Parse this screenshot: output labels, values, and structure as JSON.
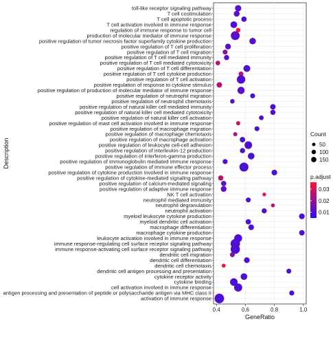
{
  "chart_data": {
    "type": "scatter",
    "xlabel": "GeneRatio",
    "ylabel": "Description",
    "xlim": [
      0.38,
      1.02
    ],
    "xticks": [
      0.4,
      0.6,
      0.8,
      1.0
    ],
    "xtick_labels": [
      "0.4",
      "0.6",
      "0.8",
      "1.0"
    ],
    "grid": true,
    "legend_position": "right",
    "size_legend": {
      "title": "Count",
      "values": [
        50,
        100,
        150
      ],
      "labels": [
        "50",
        "100",
        "150"
      ]
    },
    "color_legend": {
      "title": "p.adjust",
      "ticks": [
        0.01,
        0.02,
        0.03
      ],
      "labels": [
        "0.01",
        "0.02",
        "0.03"
      ],
      "low_color": "#2a0ff5",
      "high_color": "#ff1430"
    },
    "points": [
      {
        "term": "toll-like receptor signaling pathway",
        "x": 0.55,
        "count": 52,
        "p": 0.012
      },
      {
        "term": "T cell costimulation",
        "x": 0.54,
        "count": 42,
        "p": 0.012
      },
      {
        "term": "T cell apoptotic process",
        "x": 0.59,
        "count": 32,
        "p": 0.01
      },
      {
        "term": "T cell activation involved in immune response",
        "x": 0.52,
        "count": 62,
        "p": 0.01
      },
      {
        "term": "regulation of immune response to tumor cell",
        "x": 0.55,
        "count": 20,
        "p": 0.034
      },
      {
        "term": "production of molecular mediator of immune response",
        "x": 0.53,
        "count": 125,
        "p": 0.012
      },
      {
        "term": "positive regulation of tumor necrosis factor superfamily cytokine production",
        "x": 0.65,
        "count": 58,
        "p": 0.012
      },
      {
        "term": "positive regulation of T cell proliferation",
        "x": 0.48,
        "count": 40,
        "p": 0.012
      },
      {
        "term": "positive regulation of T cell migration",
        "x": 0.46,
        "count": 25,
        "p": 0.018
      },
      {
        "term": "positive regulation of T cell mediated immunity",
        "x": 0.47,
        "count": 30,
        "p": 0.012
      },
      {
        "term": "positive regulation of T cell mediated cytotoxicity",
        "x": 0.41,
        "count": 20,
        "p": 0.024
      },
      {
        "term": "positive regulation of T cell differentiation",
        "x": 0.61,
        "count": 65,
        "p": 0.01
      },
      {
        "term": "positive regulation of T cell cytokine production",
        "x": 0.57,
        "count": 25,
        "p": 0.026
      },
      {
        "term": "positive regulation of T cell activation",
        "x": 0.57,
        "count": 110,
        "p": 0.01
      },
      {
        "term": "positive regulation of response to cytokine stimulus",
        "x": 0.42,
        "count": 35,
        "p": 0.026
      },
      {
        "term": "positive regulation of production of molecular mediator of immune response",
        "x": 0.57,
        "count": 75,
        "p": 0.012
      },
      {
        "term": "positive regulation of neutrophil migration",
        "x": 0.65,
        "count": 26,
        "p": 0.01
      },
      {
        "term": "positive regulation of neutrophil chemotaxis",
        "x": 0.51,
        "count": 20,
        "p": 0.012
      },
      {
        "term": "positive regulation of natural killer cell mediated immunity",
        "x": 0.79,
        "count": 35,
        "p": 0.01
      },
      {
        "term": "positive regulation of natural killer cell mediated cytotoxicity",
        "x": 0.79,
        "count": 30,
        "p": 0.01
      },
      {
        "term": "positive regulation of natural killer cell activation",
        "x": 0.71,
        "count": 22,
        "p": 0.01
      },
      {
        "term": "positive regulation of mast cell activation involved in immune response",
        "x": 0.55,
        "count": 15,
        "p": 0.028
      },
      {
        "term": "positive regulation of macrophage migration",
        "x": 0.68,
        "count": 25,
        "p": 0.01
      },
      {
        "term": "positive regulation of macrophage chemotaxis",
        "x": 0.53,
        "count": 15,
        "p": 0.024
      },
      {
        "term": "positive regulation of macrophage activation",
        "x": 0.58,
        "count": 35,
        "p": 0.01
      },
      {
        "term": "positive regulation of leukocyte cell-cell adhesion",
        "x": 0.62,
        "count": 85,
        "p": 0.01
      },
      {
        "term": "positive regulation of interleukin-12 production",
        "x": 0.58,
        "count": 30,
        "p": 0.01
      },
      {
        "term": "positive regulation of interferon-gamma production",
        "x": 0.64,
        "count": 60,
        "p": 0.01
      },
      {
        "term": "positive regulation of immunoglobulin mediated immune response",
        "x": 0.46,
        "count": 28,
        "p": 0.012
      },
      {
        "term": "positive regulation of immune effector process",
        "x": 0.59,
        "count": 130,
        "p": 0.01
      },
      {
        "term": "positive regulation of cytokine production involved in immune response",
        "x": 0.8,
        "count": 38,
        "p": 0.01
      },
      {
        "term": "positive regulation of cytokine-mediated signaling pathway",
        "x": 0.43,
        "count": 30,
        "p": 0.026
      },
      {
        "term": "positive regulation of calcium-mediated signaling",
        "x": 0.45,
        "count": 32,
        "p": 0.012
      },
      {
        "term": "positive regulation of adaptive immune response",
        "x": 0.45,
        "count": 40,
        "p": 0.012
      },
      {
        "term": "NK T cell activation",
        "x": 0.73,
        "count": 10,
        "p": 0.034
      },
      {
        "term": "neutrophil mediated immunity",
        "x": 0.62,
        "count": 25,
        "p": 0.01
      },
      {
        "term": "neutrophil degranulation",
        "x": 0.79,
        "count": 12,
        "p": 0.026
      },
      {
        "term": "neutrophil activation",
        "x": 0.73,
        "count": 28,
        "p": 0.01
      },
      {
        "term": "myeloid leukocyte cytokine production",
        "x": 0.99,
        "count": 40,
        "p": 0.01
      },
      {
        "term": "myeloid dendritic cell activation",
        "x": 0.62,
        "count": 32,
        "p": 0.01
      },
      {
        "term": "macrophage differentiation",
        "x": 0.64,
        "count": 38,
        "p": 0.01
      },
      {
        "term": "macrophage cytokine production",
        "x": 0.99,
        "count": 35,
        "p": 0.01
      },
      {
        "term": "leukocyte activation involved in immune response",
        "x": 0.55,
        "count": 95,
        "p": 0.01
      },
      {
        "term": "immune response-regulating cell surface receptor signaling pathway",
        "x": 0.53,
        "count": 145,
        "p": 0.01
      },
      {
        "term": "immune response-activating cell surface receptor signaling pathway",
        "x": 0.53,
        "count": 140,
        "p": 0.01
      },
      {
        "term": "dendritic cell migration",
        "x": 0.51,
        "count": 25,
        "p": 0.018
      },
      {
        "term": "dendritic cell differentiation",
        "x": 0.61,
        "count": 40,
        "p": 0.01
      },
      {
        "term": "dendritic cell chemotaxis",
        "x": 0.45,
        "count": 12,
        "p": 0.034
      },
      {
        "term": "dendritic cell antigen processing and presentation",
        "x": 0.9,
        "count": 25,
        "p": 0.01
      },
      {
        "term": "cytokine receptor activity",
        "x": 0.59,
        "count": 60,
        "p": 0.01
      },
      {
        "term": "cytokine binding",
        "x": 0.52,
        "count": 85,
        "p": 0.01
      },
      {
        "term": "cell activation involved in immune response",
        "x": 0.55,
        "count": 100,
        "p": 0.01
      },
      {
        "term": "antigen processing and presentation of peptide or polysaccharide antigen via MHC class II",
        "x": 0.92,
        "count": 28,
        "p": 0.01
      },
      {
        "term": "activation of immune response",
        "x": 0.42,
        "count": 150,
        "p": 0.01
      }
    ]
  }
}
